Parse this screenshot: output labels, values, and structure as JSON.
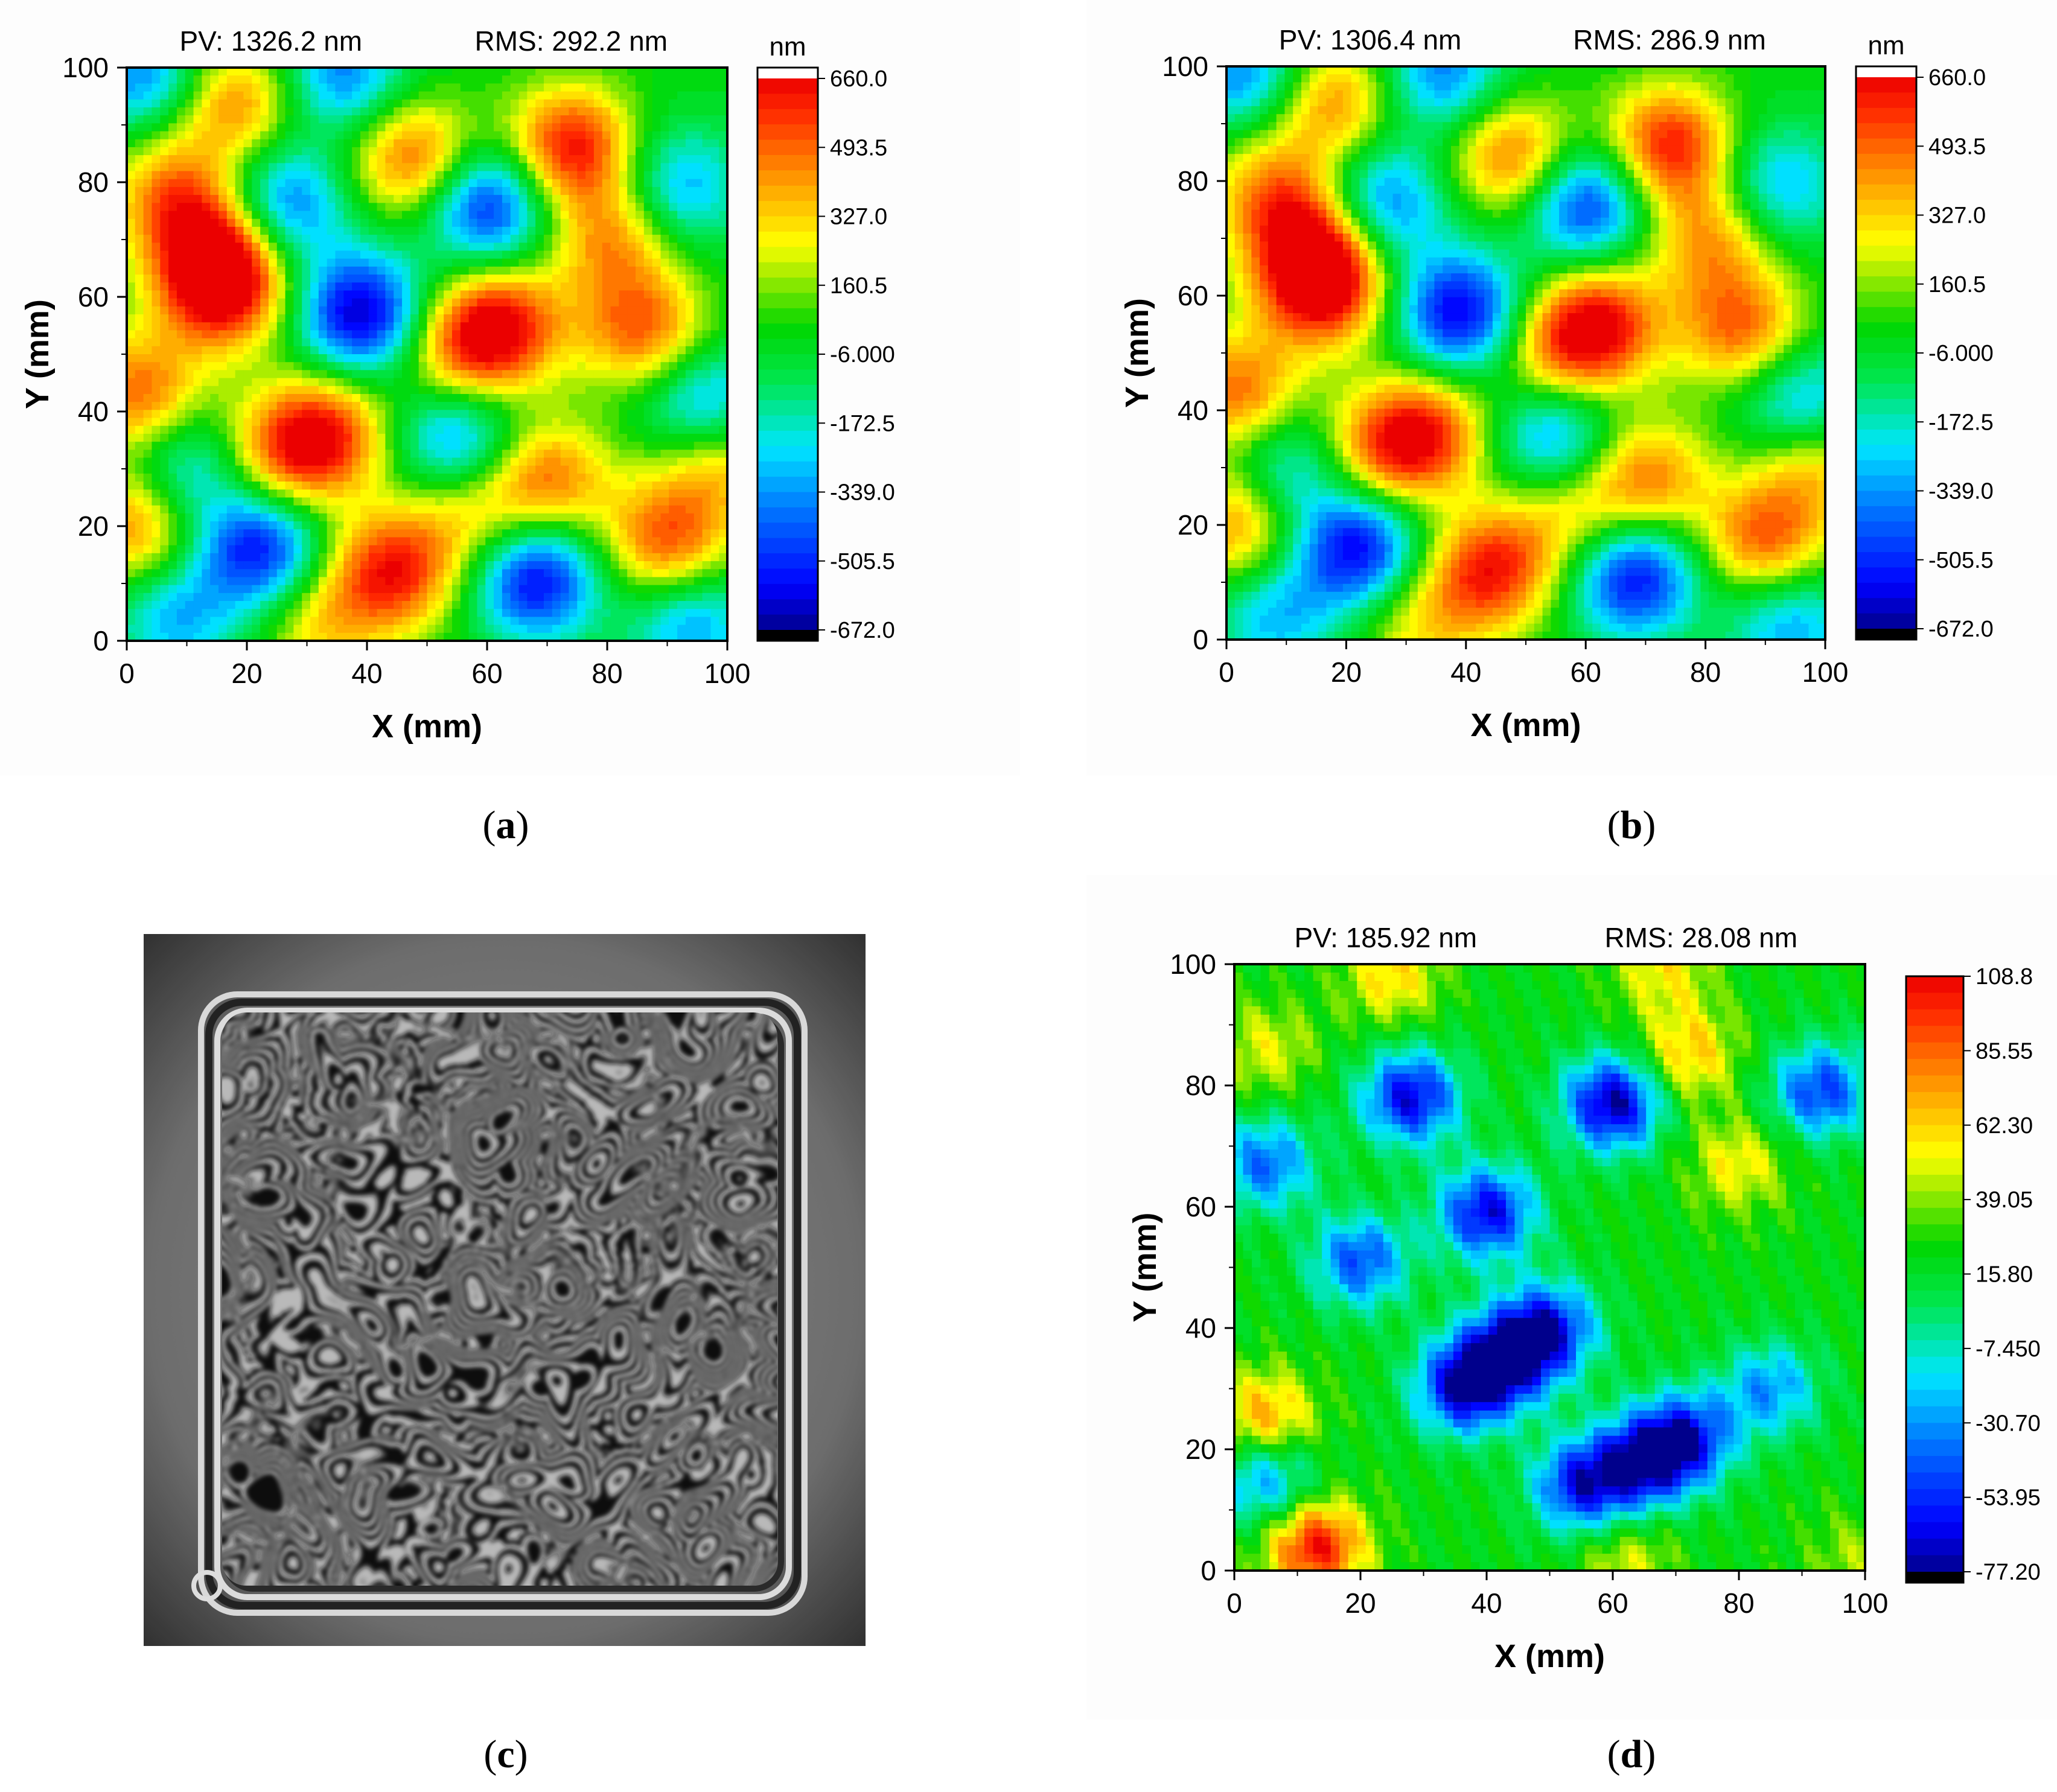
{
  "panels": {
    "a": {
      "caption_letter": "a"
    },
    "b": {
      "caption_letter": "b"
    },
    "c": {
      "caption_letter": "c"
    },
    "d": {
      "caption_letter": "d"
    }
  },
  "chart_data": [
    {
      "panel": "a",
      "type": "heatmap",
      "title_left": "PV: 1326.2 nm",
      "title_right": "RMS: 292.2 nm",
      "xlabel": "X (mm)",
      "ylabel": "Y (mm)",
      "xlim": [
        0,
        100
      ],
      "ylim": [
        0,
        100
      ],
      "xticks": [
        "0",
        "20",
        "40",
        "60",
        "80",
        "100"
      ],
      "yticks": [
        "0",
        "20",
        "40",
        "60",
        "80",
        "100"
      ],
      "colorbar": {
        "unit": "nm",
        "range": [
          -672.0,
          660.0
        ],
        "ticks": [
          "660.0",
          "493.5",
          "327.0",
          "160.5",
          "-6.000",
          "-172.5",
          "-339.0",
          "-505.5",
          "-672.0"
        ]
      },
      "surface_features": [
        {
          "x": 18,
          "y": 94,
          "z": 450
        },
        {
          "x": 3,
          "y": 99,
          "z": -380
        },
        {
          "x": 36,
          "y": 99,
          "z": -380
        },
        {
          "x": 48,
          "y": 84,
          "z": 520
        },
        {
          "x": 74,
          "y": 86,
          "z": 640
        },
        {
          "x": 8,
          "y": 78,
          "z": 440
        },
        {
          "x": 15,
          "y": 68,
          "z": 540
        },
        {
          "x": 16,
          "y": 61,
          "z": 600
        },
        {
          "x": 26,
          "y": 76,
          "z": -430
        },
        {
          "x": 60,
          "y": 76,
          "z": -560
        },
        {
          "x": 92,
          "y": 79,
          "z": -330
        },
        {
          "x": 81,
          "y": 70,
          "z": 420
        },
        {
          "x": 39,
          "y": 57,
          "z": -640
        },
        {
          "x": 62,
          "y": 55,
          "z": 630
        },
        {
          "x": 55,
          "y": 49,
          "z": 360
        },
        {
          "x": 86,
          "y": 54,
          "z": 500
        },
        {
          "x": 2,
          "y": 43,
          "z": 500
        },
        {
          "x": 33,
          "y": 36,
          "z": 570
        },
        {
          "x": 25,
          "y": 32,
          "z": 380
        },
        {
          "x": 55,
          "y": 36,
          "z": -400
        },
        {
          "x": 96,
          "y": 41,
          "z": -380
        },
        {
          "x": 10,
          "y": 30,
          "z": -310
        },
        {
          "x": 70,
          "y": 28,
          "z": 480
        },
        {
          "x": 57,
          "y": 21,
          "z": 300
        },
        {
          "x": 98,
          "y": 31,
          "z": 380
        },
        {
          "x": 2,
          "y": 20,
          "z": 470
        },
        {
          "x": 22,
          "y": 16,
          "z": -560
        },
        {
          "x": 44,
          "y": 12,
          "z": 600
        },
        {
          "x": 68,
          "y": 11,
          "z": -600
        },
        {
          "x": 90,
          "y": 17,
          "z": 520
        },
        {
          "x": 8,
          "y": 4,
          "z": -300
        },
        {
          "x": 32,
          "y": 3,
          "z": 300
        },
        {
          "x": 94,
          "y": 3,
          "z": -350
        }
      ]
    },
    {
      "panel": "b",
      "type": "heatmap",
      "title_left": "PV: 1306.4 nm",
      "title_right": "RMS: 286.9 nm",
      "xlabel": "X (mm)",
      "ylabel": "Y (mm)",
      "xlim": [
        0,
        100
      ],
      "ylim": [
        0,
        100
      ],
      "xticks": [
        "0",
        "20",
        "40",
        "60",
        "80",
        "100"
      ],
      "yticks": [
        "0",
        "20",
        "40",
        "60",
        "80",
        "100"
      ],
      "colorbar": {
        "unit": "nm",
        "range": [
          -672.0,
          660.0
        ],
        "ticks": [
          "660.0",
          "493.5",
          "327.0",
          "160.5",
          "-6.000",
          "-172.5",
          "-339.0",
          "-505.5",
          "-672.0"
        ]
      },
      "surface_features": [
        {
          "x": 18,
          "y": 94,
          "z": 440
        },
        {
          "x": 3,
          "y": 99,
          "z": -380
        },
        {
          "x": 36,
          "y": 99,
          "z": -380
        },
        {
          "x": 48,
          "y": 84,
          "z": 500
        },
        {
          "x": 74,
          "y": 86,
          "z": 620
        },
        {
          "x": 8,
          "y": 78,
          "z": 430
        },
        {
          "x": 15,
          "y": 68,
          "z": 530
        },
        {
          "x": 16,
          "y": 61,
          "z": 590
        },
        {
          "x": 26,
          "y": 76,
          "z": -420
        },
        {
          "x": 60,
          "y": 76,
          "z": -540
        },
        {
          "x": 92,
          "y": 79,
          "z": -320
        },
        {
          "x": 81,
          "y": 70,
          "z": 410
        },
        {
          "x": 39,
          "y": 57,
          "z": -600
        },
        {
          "x": 62,
          "y": 55,
          "z": 620
        },
        {
          "x": 55,
          "y": 49,
          "z": 350
        },
        {
          "x": 86,
          "y": 54,
          "z": 490
        },
        {
          "x": 2,
          "y": 43,
          "z": 490
        },
        {
          "x": 33,
          "y": 36,
          "z": 560
        },
        {
          "x": 25,
          "y": 32,
          "z": 370
        },
        {
          "x": 55,
          "y": 36,
          "z": -390
        },
        {
          "x": 96,
          "y": 41,
          "z": -370
        },
        {
          "x": 10,
          "y": 30,
          "z": -300
        },
        {
          "x": 70,
          "y": 28,
          "z": 470
        },
        {
          "x": 57,
          "y": 21,
          "z": 290
        },
        {
          "x": 98,
          "y": 31,
          "z": 370
        },
        {
          "x": 2,
          "y": 20,
          "z": 460
        },
        {
          "x": 22,
          "y": 16,
          "z": -600
        },
        {
          "x": 44,
          "y": 12,
          "z": 590
        },
        {
          "x": 68,
          "y": 11,
          "z": -580
        },
        {
          "x": 90,
          "y": 17,
          "z": 510
        },
        {
          "x": 8,
          "y": 4,
          "z": -290
        },
        {
          "x": 32,
          "y": 3,
          "z": 290
        },
        {
          "x": 94,
          "y": 3,
          "z": -340
        }
      ]
    },
    {
      "panel": "d",
      "type": "heatmap",
      "title_left": "PV: 185.92 nm",
      "title_right": "RMS: 28.08 nm",
      "xlabel": "X (mm)",
      "ylabel": "Y (mm)",
      "xlim": [
        0,
        100
      ],
      "ylim": [
        0,
        100
      ],
      "xticks": [
        "0",
        "20",
        "40",
        "60",
        "80",
        "100"
      ],
      "yticks": [
        "0",
        "20",
        "40",
        "60",
        "80",
        "100"
      ],
      "colorbar": {
        "unit": "",
        "range": [
          -77.2,
          108.8
        ],
        "ticks": [
          "108.8",
          "85.55",
          "62.30",
          "39.05",
          "15.80",
          "-7.450",
          "-30.70",
          "-53.95",
          "-77.20"
        ]
      },
      "surface_features": [
        {
          "x": 28,
          "y": 78,
          "z": -65
        },
        {
          "x": 60,
          "y": 77,
          "z": -75
        },
        {
          "x": 40,
          "y": 59,
          "z": -65
        },
        {
          "x": 20,
          "y": 51,
          "z": -45
        },
        {
          "x": 5,
          "y": 67,
          "z": -40
        },
        {
          "x": 93,
          "y": 79,
          "z": -50
        },
        {
          "x": 43,
          "y": 35,
          "z": -70
        },
        {
          "x": 36,
          "y": 30,
          "z": -60
        },
        {
          "x": 50,
          "y": 40,
          "z": -55
        },
        {
          "x": 55,
          "y": 14,
          "z": -60
        },
        {
          "x": 65,
          "y": 18,
          "z": -65
        },
        {
          "x": 72,
          "y": 22,
          "z": -50
        },
        {
          "x": 5,
          "y": 15,
          "z": -35
        },
        {
          "x": 85,
          "y": 30,
          "z": -30
        },
        {
          "x": 13,
          "y": 4,
          "z": 105
        },
        {
          "x": 5,
          "y": 25,
          "z": 75
        },
        {
          "x": 72,
          "y": 85,
          "z": 65
        },
        {
          "x": 80,
          "y": 67,
          "z": 55
        },
        {
          "x": 25,
          "y": 98,
          "z": 60
        },
        {
          "x": 68,
          "y": 99,
          "z": 55
        },
        {
          "x": 5,
          "y": 86,
          "z": 50
        },
        {
          "x": 62,
          "y": 2,
          "z": 50
        },
        {
          "x": 98,
          "y": 2,
          "z": 40
        }
      ]
    }
  ]
}
